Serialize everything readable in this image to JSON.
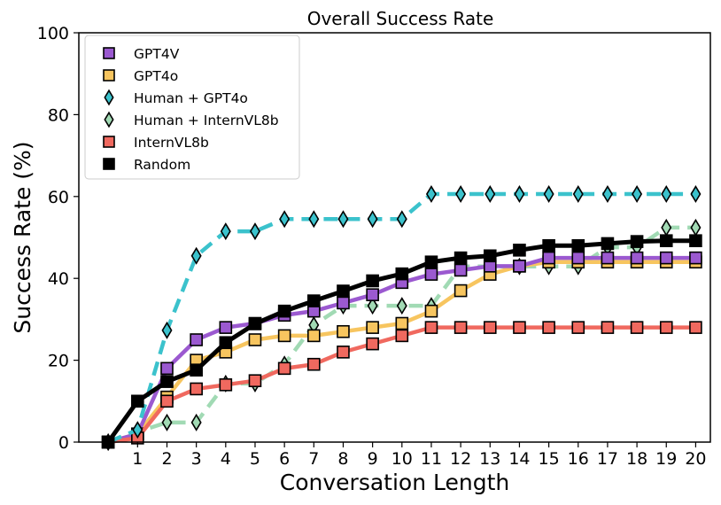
{
  "chart_data": {
    "type": "line",
    "title": "Overall Success Rate",
    "xlabel": "Conversation Length",
    "ylabel": "Success Rate (%)",
    "xlim": [
      -1,
      20.5
    ],
    "ylim": [
      0,
      100
    ],
    "xticks": [
      1,
      2,
      3,
      4,
      5,
      6,
      7,
      8,
      9,
      10,
      11,
      12,
      13,
      14,
      15,
      16,
      17,
      18,
      19,
      20
    ],
    "yticks": [
      0,
      20,
      40,
      60,
      80,
      100
    ],
    "grid": false,
    "legend_position": "top-left",
    "series": [
      {
        "name": "GPT4V",
        "color": "#9b59d0",
        "marker": "square",
        "dash": "solid",
        "x": [
          0,
          1,
          2,
          3,
          4,
          5,
          6,
          7,
          8,
          9,
          10,
          11,
          12,
          13,
          14,
          15,
          16,
          17,
          18,
          19,
          20
        ],
        "y": [
          0,
          2,
          18,
          25,
          28,
          29,
          31,
          32,
          34,
          36,
          39,
          41,
          42,
          43,
          43,
          45,
          45,
          45,
          45,
          45,
          45
        ]
      },
      {
        "name": "GPT4o",
        "color": "#f7c55f",
        "marker": "square",
        "dash": "solid",
        "x": [
          0,
          1,
          2,
          3,
          4,
          5,
          6,
          7,
          8,
          9,
          10,
          11,
          12,
          13,
          14,
          15,
          16,
          17,
          18,
          19,
          20
        ],
        "y": [
          0,
          2,
          11,
          20,
          22,
          25,
          26,
          26,
          27,
          28,
          29,
          32,
          37,
          41,
          43,
          44,
          44,
          44,
          44,
          44,
          44
        ]
      },
      {
        "name": "Human + GPT4o",
        "color": "#3bc2cc",
        "marker": "diamond",
        "dash": "dashed",
        "x": [
          0,
          1,
          2,
          3,
          4,
          5,
          6,
          7,
          8,
          9,
          10,
          11,
          12,
          13,
          14,
          15,
          16,
          17,
          18,
          19,
          20
        ],
        "y": [
          0,
          3,
          27.3,
          45.5,
          51.5,
          51.5,
          54.5,
          54.5,
          54.5,
          54.5,
          54.5,
          60.6,
          60.6,
          60.6,
          60.6,
          60.6,
          60.6,
          60.6,
          60.6,
          60.6,
          60.6
        ]
      },
      {
        "name": "Human + InternVL8b",
        "color": "#a1dab4",
        "marker": "diamond",
        "dash": "dashed",
        "x": [
          0,
          1,
          2,
          3,
          4,
          5,
          6,
          7,
          8,
          9,
          10,
          11,
          12,
          13,
          14,
          15,
          16,
          17,
          18,
          19,
          20
        ],
        "y": [
          0,
          2.5,
          4.8,
          4.8,
          14.3,
          14.3,
          19,
          28.6,
          33.3,
          33.3,
          33.3,
          33.3,
          42.9,
          42.9,
          42.9,
          42.9,
          42.9,
          47.6,
          47.6,
          52.4,
          52.4
        ]
      },
      {
        "name": "InternVL8b",
        "color": "#f0695f",
        "marker": "square",
        "dash": "solid",
        "x": [
          0,
          1,
          2,
          3,
          4,
          5,
          6,
          7,
          8,
          9,
          10,
          11,
          12,
          13,
          14,
          15,
          16,
          17,
          18,
          19,
          20
        ],
        "y": [
          0,
          1,
          10,
          13,
          14,
          15,
          18,
          19,
          22,
          24,
          26,
          28,
          28,
          28,
          28,
          28,
          28,
          28,
          28,
          28,
          28
        ]
      },
      {
        "name": "Random",
        "color": "#000000",
        "marker": "square",
        "dash": "solid",
        "x": [
          0,
          1,
          2,
          3,
          4,
          5,
          6,
          7,
          8,
          9,
          10,
          11,
          12,
          13,
          14,
          15,
          16,
          17,
          18,
          19,
          20
        ],
        "y": [
          0,
          10,
          14.8,
          17.6,
          24.3,
          28.9,
          32,
          34.5,
          36.9,
          39.4,
          41.1,
          44,
          45,
          45.5,
          46.9,
          48,
          48,
          48.5,
          49,
          49.2,
          49.2
        ]
      }
    ]
  }
}
